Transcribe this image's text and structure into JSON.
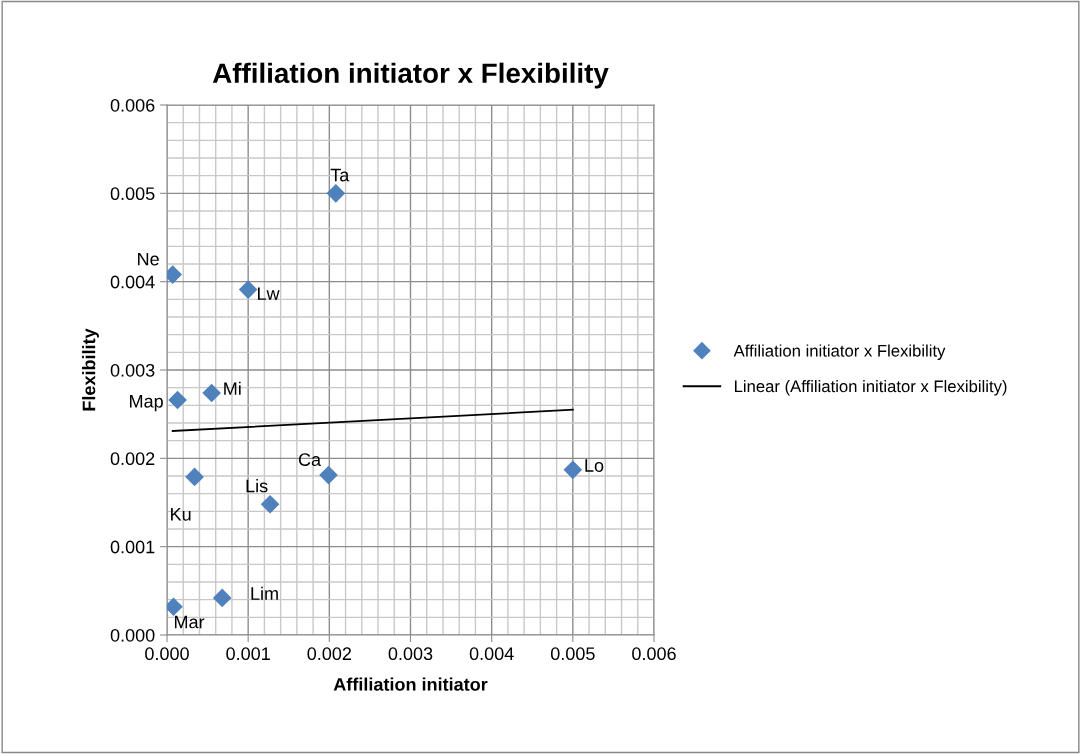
{
  "chart_data": {
    "type": "scatter",
    "title": "Affiliation initiator x Flexibility",
    "xlabel": "Affiliation initiator",
    "ylabel": "Flexibility",
    "series": [
      {
        "name": "Affiliation initiator x Flexibility",
        "color": "#4f81bd",
        "marker": "diamond",
        "x": [
          0.00208,
          7e-05,
          0.001,
          0.00055,
          0.00013,
          0.00034,
          0.00199,
          0.00127,
          0.005,
          8e-05,
          0.00068
        ],
        "values": [
          0.005,
          0.00408,
          0.00391,
          0.00274,
          0.00266,
          0.00179,
          0.00181,
          0.00148,
          0.00187,
          0.00032,
          0.00042
        ]
      },
      {
        "name": "Linear (Affiliation initiator x Flexibility)",
        "type": "line",
        "color": "#000000",
        "marker": "none",
        "line_style": "solid",
        "x": [
          7e-05,
          0.005
        ],
        "values": [
          0.00231,
          0.00255
        ]
      }
    ],
    "annotations": [
      {
        "text": "Ta",
        "x": 0.00208,
        "y": 0.005
      },
      {
        "text": "Ne",
        "x": 7e-05,
        "y": 0.00408
      },
      {
        "text": "Lw",
        "x": 0.001,
        "y": 0.00391
      },
      {
        "text": "Mi",
        "x": 0.00055,
        "y": 0.00274
      },
      {
        "text": "Map",
        "x": 0.00013,
        "y": 0.00266
      },
      {
        "text": "Ku",
        "x": 0.00034,
        "y": 0.00179
      },
      {
        "text": "Ca",
        "x": 0.00199,
        "y": 0.00181
      },
      {
        "text": "Lis",
        "x": 0.00127,
        "y": 0.00148
      },
      {
        "text": "Lo",
        "x": 0.005,
        "y": 0.00187
      },
      {
        "text": "Mar",
        "x": 8e-05,
        "y": 0.00032
      },
      {
        "text": "Lim",
        "x": 0.00068,
        "y": 0.00042
      }
    ],
    "xlim": [
      0,
      0.006
    ],
    "ylim": [
      0,
      0.006
    ],
    "xticks": [
      {
        "value": 0,
        "label": "0.000"
      },
      {
        "value": 0.001,
        "label": "0.001"
      },
      {
        "value": 0.002,
        "label": "0.002"
      },
      {
        "value": 0.003,
        "label": "0.003"
      },
      {
        "value": 0.004,
        "label": "0.004"
      },
      {
        "value": 0.005,
        "label": "0.005"
      },
      {
        "value": 0.006,
        "label": "0.006"
      }
    ],
    "yticks": [
      {
        "value": 0,
        "label": "0.000"
      },
      {
        "value": 0.001,
        "label": "0.001"
      },
      {
        "value": 0.002,
        "label": "0.002"
      },
      {
        "value": 0.003,
        "label": "0.003"
      },
      {
        "value": 0.004,
        "label": "0.004"
      },
      {
        "value": 0.005,
        "label": "0.005"
      },
      {
        "value": 0.006,
        "label": "0.006"
      }
    ],
    "grid": true,
    "legend": "right"
  }
}
